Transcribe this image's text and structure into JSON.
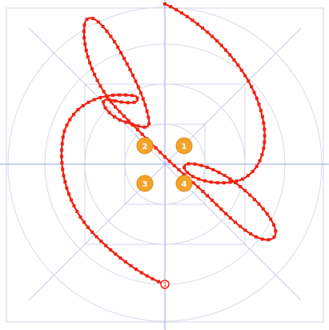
{
  "markers": [
    {
      "label": "1",
      "color": "#f2a42a"
    },
    {
      "label": "2",
      "color": "#f2a42a"
    },
    {
      "label": "3",
      "color": "#f2a42a"
    },
    {
      "label": "4",
      "color": "#f2a42a"
    }
  ],
  "path_end": {
    "label": "1"
  },
  "colors": {
    "curve": "#ee2211",
    "axis": "#9aa0e0",
    "grid": "#d9d9ea",
    "marker": "#f2a42a"
  }
}
